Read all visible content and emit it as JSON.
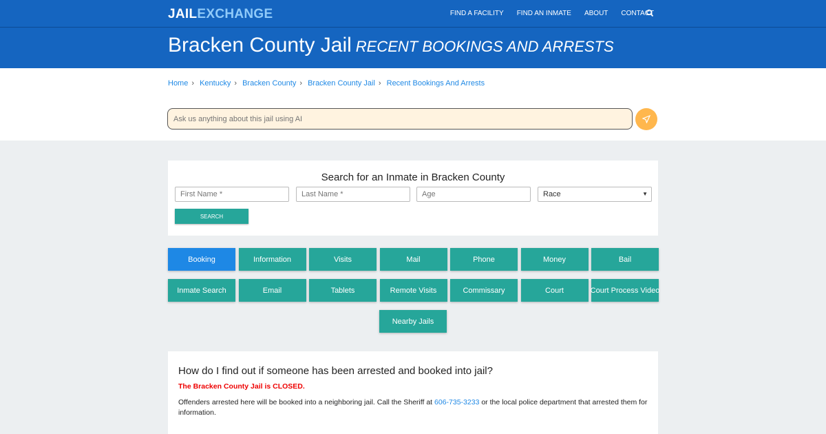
{
  "nav": {
    "logo_a": "JAIL",
    "logo_b": "EXCHANGE",
    "items": [
      "FIND A FACILITY",
      "FIND AN INMATE",
      "ABOUT",
      "CONTACT"
    ]
  },
  "hero": {
    "title": "Bracken County Jail",
    "subtitle": "RECENT BOOKINGS AND ARRESTS"
  },
  "breadcrumb": [
    "Home",
    "Kentucky",
    "Bracken County",
    "Bracken County Jail",
    "Recent Bookings And Arrests"
  ],
  "ai": {
    "placeholder": "Ask us anything about this jail using AI"
  },
  "search": {
    "title": "Search for an Inmate in Bracken County",
    "first": "First Name *",
    "last": "Last Name *",
    "age": "Age",
    "race": "Race",
    "button": "SEARCH"
  },
  "buttons": [
    "Booking",
    "Information",
    "Visits",
    "Mail",
    "Phone",
    "Money",
    "Bail",
    "Inmate Search",
    "Email",
    "Tablets",
    "Remote Visits",
    "Commissary",
    "Court",
    "Court Process Video",
    "Nearby Jails"
  ],
  "info": {
    "heading": "How do I find out if someone has been arrested and booked into jail?",
    "closed": "The Bracken County Jail is CLOSED.",
    "p1a": "Offenders arrested here will be booked into a neighboring jail.  Call the Sheriff at ",
    "phone": "606-735-3233",
    "p1b": " or the local police department that arrested them for information."
  },
  "colors": {
    "primary": "#1565c0",
    "teal": "#26a69a",
    "active": "#1e88e5",
    "closed": "#e00000"
  }
}
